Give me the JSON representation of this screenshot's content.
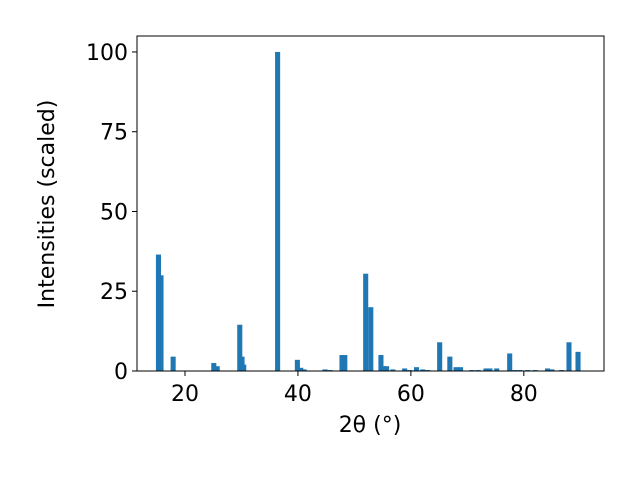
{
  "chart_data": {
    "type": "bar",
    "x_label": "2θ (°)",
    "y_label": "Intensities (scaled)",
    "color": "#1f77b4",
    "x": [
      15.3,
      15.75,
      17.9,
      25.1,
      25.7,
      29.7,
      30.1,
      30.4,
      36.4,
      39.9,
      40.5,
      41.1,
      44.8,
      45.7,
      47.8,
      48.3,
      52.0,
      52.9,
      54.7,
      55.2,
      55.7,
      56.8,
      58.9,
      59.8,
      61.0,
      62.1,
      63.0,
      65.1,
      66.9,
      68.0,
      68.8,
      70.8,
      71.9,
      73.3,
      74.0,
      75.2,
      77.5,
      78.4,
      79.3,
      80.7,
      82.0,
      84.2,
      85.0,
      86.7,
      88.0,
      89.6
    ],
    "values": [
      36.5,
      30,
      4.5,
      2.5,
      1.5,
      14.5,
      4.5,
      2,
      100,
      3.5,
      1,
      0.5,
      0.5,
      0.3,
      5,
      5,
      30.5,
      20,
      5,
      1.5,
      1.5,
      0.5,
      0.8,
      0.3,
      1.2,
      0.5,
      0.3,
      9,
      4.5,
      1.2,
      1.2,
      0.3,
      0.3,
      0.8,
      0.8,
      0.8,
      5.5,
      0.3,
      0.3,
      0.3,
      0.3,
      0.8,
      0.5,
      0.3,
      9,
      6
    ],
    "xlim": [
      11.5,
      94.2
    ],
    "xticks": [
      20,
      40,
      60,
      80
    ],
    "ylim": [
      0,
      105
    ],
    "yticks": [
      0,
      25,
      50,
      75,
      100
    ],
    "grid": false
  }
}
